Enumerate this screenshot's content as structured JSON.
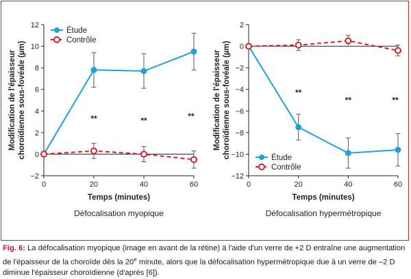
{
  "chart_data": [
    {
      "type": "line",
      "title": "Défocalisation myopique",
      "xlabel": "Temps (minutes)",
      "ylabel_line1": "Modification de l'épaisseur",
      "ylabel_line2": "choroïdienne sous-fovéale (µm)",
      "x": [
        0,
        20,
        40,
        60
      ],
      "xticks": [
        "0",
        "20",
        "40",
        "60"
      ],
      "xlim": [
        0,
        60
      ],
      "ylim": [
        -2,
        12
      ],
      "yticks": [
        -2,
        0,
        2,
        4,
        6,
        8,
        10,
        12
      ],
      "legend_position": "top-left",
      "series": [
        {
          "name": "Étude",
          "color": "#1aa3dd",
          "style": "solid",
          "marker": "filled-circle",
          "values": [
            0,
            7.8,
            7.7,
            9.5
          ],
          "errors": [
            0,
            1.6,
            1.6,
            1.7
          ]
        },
        {
          "name": "Contrôle",
          "color": "#d42027",
          "style": "dashed",
          "marker": "open-circle",
          "values": [
            0,
            0.3,
            0.0,
            -0.5
          ],
          "errors": [
            0,
            0.7,
            0.7,
            0.8
          ]
        }
      ],
      "annotations": [
        {
          "text": "**",
          "x": 20,
          "y": 3.3
        },
        {
          "text": "**",
          "x": 40,
          "y": 3.1
        },
        {
          "text": "**",
          "x": 60,
          "y": 3.5
        }
      ]
    },
    {
      "type": "line",
      "title": "Défocalisation hypermétropique",
      "xlabel": "Temps (minutes)",
      "ylabel_line1": "Modification de l'épaisseur",
      "ylabel_line2": "choroïdienne sous-fovéale (µm)",
      "x": [
        0,
        20,
        40,
        60
      ],
      "xticks": [
        "0",
        "20",
        "40",
        "60"
      ],
      "xlim": [
        0,
        60
      ],
      "ylim": [
        -12,
        2
      ],
      "yticks": [
        -12,
        -10,
        -8,
        -6,
        -4,
        -2,
        0,
        2
      ],
      "legend_position": "bottom-left",
      "series": [
        {
          "name": "Étude",
          "color": "#1aa3dd",
          "style": "solid",
          "marker": "filled-circle",
          "values": [
            0,
            -7.5,
            -9.9,
            -9.6
          ],
          "errors": [
            0,
            1.2,
            1.4,
            1.5
          ]
        },
        {
          "name": "Contrôle",
          "color": "#d42027",
          "style": "dashed",
          "marker": "open-circle",
          "values": [
            0,
            0.1,
            0.5,
            -0.4
          ],
          "errors": [
            0,
            0.5,
            0.5,
            0.5
          ]
        }
      ],
      "annotations": [
        {
          "text": "**",
          "x": 20,
          "y": -4.3
        },
        {
          "text": "**",
          "x": 40,
          "y": -5.0
        },
        {
          "text": "**",
          "x": 60,
          "y": -5.0
        }
      ]
    }
  ],
  "caption": {
    "label": "Fig. 6:",
    "text_before_sup": " La défocalisation myopique (image en avant de la rétine) à l'aide d'un verre de +2 D entraîne une augmentation de l'épaisseur de la choroïde dès la 20",
    "sup": "e",
    "text_after_sup": " minute, alors que la défocalisation hypermétropique due à un verre de –2 D diminue l'épaisseur choroïdienne (d'après [6])."
  }
}
